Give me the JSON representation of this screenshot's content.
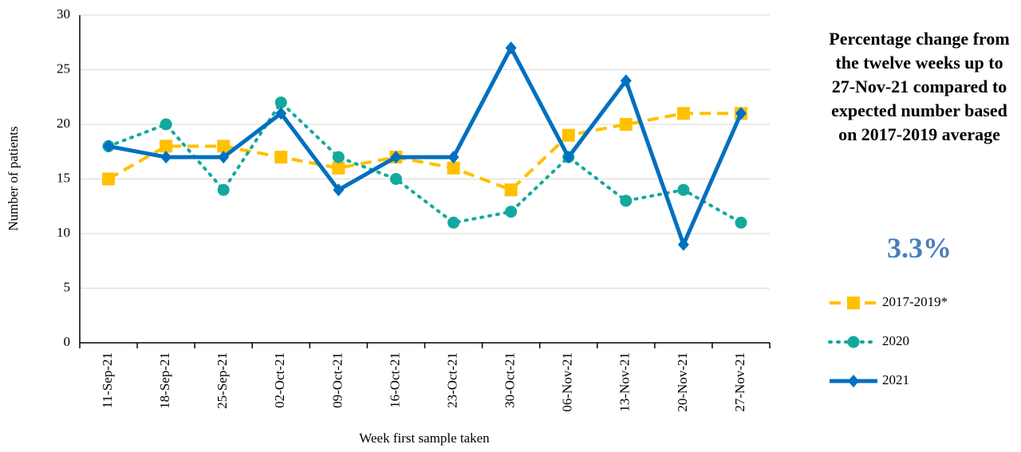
{
  "chart_data": {
    "type": "line",
    "x_label": "Week first sample taken",
    "y_label": "Number of patients",
    "categories": [
      "11-Sep-21",
      "18-Sep-21",
      "25-Sep-21",
      "02-Oct-21",
      "09-Oct-21",
      "16-Oct-21",
      "23-Oct-21",
      "30-Oct-21",
      "06-Nov-21",
      "13-Nov-21",
      "20-Nov-21",
      "27-Nov-21"
    ],
    "series": [
      {
        "name": "2017-2019*",
        "color": "#ffc000",
        "dash": "dashed",
        "marker": "square",
        "values": [
          15,
          18,
          18,
          17,
          16,
          17,
          16,
          14,
          19,
          20,
          21,
          21
        ]
      },
      {
        "name": "2020",
        "color": "#13a89e",
        "dash": "dotted",
        "marker": "circle",
        "values": [
          18,
          20,
          14,
          22,
          17,
          15,
          11,
          12,
          17,
          13,
          14,
          11
        ]
      },
      {
        "name": "2021",
        "color": "#0070c0",
        "dash": "solid",
        "marker": "diamond",
        "values": [
          18,
          17,
          17,
          21,
          14,
          17,
          17,
          27,
          17,
          24,
          9,
          21
        ]
      }
    ],
    "ylim": [
      0,
      30
    ],
    "yticks": [
      0,
      5,
      10,
      15,
      20,
      25,
      30
    ],
    "grid": true,
    "annotation": {
      "title": "Percentage change from the twelve weeks up to 27-Nov-21 compared to expected number based on 2017-2019 average",
      "value": "3.3%"
    }
  }
}
